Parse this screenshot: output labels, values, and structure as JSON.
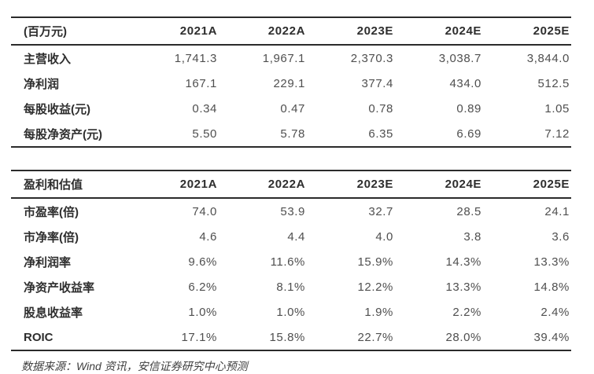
{
  "colors": {
    "background": "#ffffff",
    "border": "#2b2b2b",
    "label_text": "#2e2e2e",
    "value_text": "#4f4f4f",
    "footer_text": "#3f3f3f"
  },
  "columns": [
    "2021A",
    "2022A",
    "2023E",
    "2024E",
    "2025E"
  ],
  "income_table": {
    "header_label": "(百万元)",
    "rows": [
      {
        "label": "主营收入",
        "values": [
          "1,741.3",
          "1,967.1",
          "2,370.3",
          "3,038.7",
          "3,844.0"
        ]
      },
      {
        "label": "净利润",
        "values": [
          "167.1",
          "229.1",
          "377.4",
          "434.0",
          "512.5"
        ]
      },
      {
        "label": "每股收益(元)",
        "values": [
          "0.34",
          "0.47",
          "0.78",
          "0.89",
          "1.05"
        ]
      },
      {
        "label": "每股净资产(元)",
        "values": [
          "5.50",
          "5.78",
          "6.35",
          "6.69",
          "7.12"
        ]
      }
    ]
  },
  "valuation_table": {
    "header_label": "盈利和估值",
    "rows": [
      {
        "label": "市盈率(倍)",
        "values": [
          "74.0",
          "53.9",
          "32.7",
          "28.5",
          "24.1"
        ]
      },
      {
        "label": "市净率(倍)",
        "values": [
          "4.6",
          "4.4",
          "4.0",
          "3.8",
          "3.6"
        ]
      },
      {
        "label": "净利润率",
        "values": [
          "9.6%",
          "11.6%",
          "15.9%",
          "14.3%",
          "13.3%"
        ]
      },
      {
        "label": "净资产收益率",
        "values": [
          "6.2%",
          "8.1%",
          "12.2%",
          "13.3%",
          "14.8%"
        ]
      },
      {
        "label": "股息收益率",
        "values": [
          "1.0%",
          "1.0%",
          "1.9%",
          "2.2%",
          "2.4%"
        ]
      },
      {
        "label": "ROIC",
        "values": [
          "17.1%",
          "15.8%",
          "22.7%",
          "28.0%",
          "39.4%"
        ]
      }
    ]
  },
  "footer": {
    "text": "数据来源：Wind 资讯，安信证券研究中心预测"
  }
}
